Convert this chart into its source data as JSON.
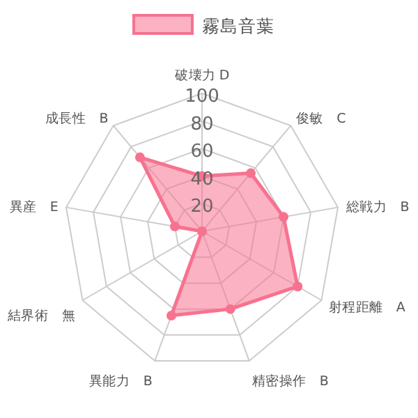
{
  "chart_data": {
    "type": "radar",
    "categories": [
      "破壊力 D",
      "俊敏　C",
      "総戦力　B",
      "射程距離　A",
      "精密操作　B",
      "異能力　B",
      "結界術　無",
      "異産　E",
      "成長性　B"
    ],
    "series": [
      {
        "name": "霧島音葉",
        "color": "#f7728f",
        "values": [
          40,
          55,
          60,
          80,
          60,
          65,
          0,
          20,
          70
        ]
      }
    ],
    "ylim": [
      0,
      100
    ],
    "yticks": [
      20,
      40,
      60,
      80,
      100
    ],
    "legend": "top",
    "marker": "circle",
    "grid": true
  }
}
